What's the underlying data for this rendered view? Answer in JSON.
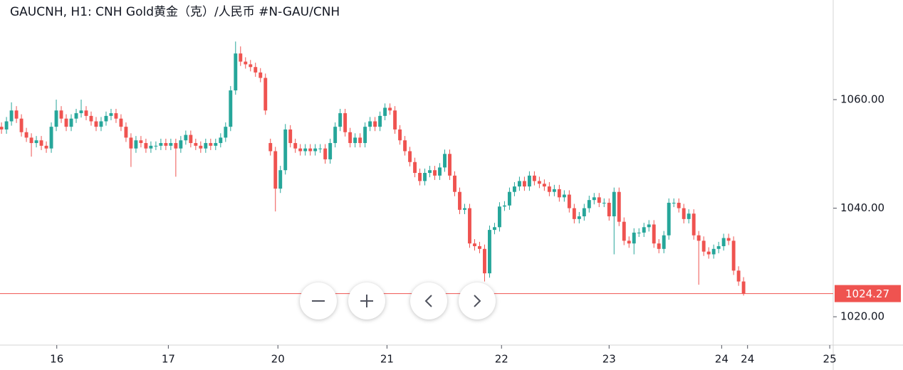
{
  "chart_data": {
    "type": "candlestick",
    "title": "GAUCNH, H1: CNH Gold黄金（克）/人民币 #N-GAU/CNH",
    "up_color": "#26a69a",
    "down_color": "#ef5350",
    "ylim": [
      1014.78,
      1078.35
    ],
    "yticks": [
      {
        "value": 1060,
        "label": "1060.00"
      },
      {
        "value": 1040,
        "label": "1040.00"
      },
      {
        "value": 1020,
        "label": "1020.00"
      }
    ],
    "xlim": [
      -0.3,
      167
    ],
    "xticks": [
      {
        "value": 11.1,
        "label": "16"
      },
      {
        "value": 33.5,
        "label": "17"
      },
      {
        "value": 55.5,
        "label": "20"
      },
      {
        "value": 77.4,
        "label": "21"
      },
      {
        "value": 100.4,
        "label": "22"
      },
      {
        "value": 122,
        "label": "23"
      },
      {
        "value": 144.6,
        "label": "24"
      },
      {
        "value": 149.8,
        "label": "24"
      },
      {
        "value": 166.3,
        "label": "25"
      }
    ],
    "last_price": 1024.27,
    "grid": false,
    "open": [
      1055,
      1054.5,
      1056,
      1058,
      1056.5,
      1054,
      1053,
      1052,
      1052.5,
      1051.5,
      1051,
      1055,
      1058,
      1056.5,
      1055,
      1056.5,
      1057.5,
      1058,
      1057,
      1056,
      1055,
      1056,
      1057,
      1057.5,
      1056.5,
      1055,
      1053,
      1051,
      1052.5,
      1052,
      1051,
      1051.5,
      1051.5,
      1052,
      1051.5,
      1052,
      1051,
      1052.5,
      1053.5,
      1052,
      1051.5,
      1051,
      1052,
      1051.5,
      1052,
      1053,
      1055,
      1061.7,
      1068.5,
      1067,
      1066.5,
      1066,
      1065,
      1064,
      1052,
      1050.5,
      1043.6,
      1047,
      1054.5,
      1052,
      1051,
      1050.5,
      1051,
      1050.5,
      1051,
      1051,
      1049,
      1052,
      1055,
      1057.5,
      1054,
      1052,
      1053,
      1052,
      1055,
      1056,
      1055,
      1057,
      1058.5,
      1058,
      1054.5,
      1052.5,
      1050.5,
      1048.5,
      1046.5,
      1045,
      1046.5,
      1047,
      1046,
      1047.5,
      1050,
      1046,
      1043,
      1039.7,
      1040,
      1033.5,
      1033,
      1032.5,
      1028,
      1036,
      1036.5,
      1040.3,
      1040.5,
      1043,
      1044,
      1045,
      1044,
      1046,
      1045,
      1044.5,
      1044,
      1043,
      1043.5,
      1042,
      1042.5,
      1040,
      1038,
      1038.5,
      1040,
      1041.5,
      1042,
      1041,
      1041,
      1038.5,
      1043,
      1037.5,
      1034,
      1033.5,
      1035.5,
      1035.5,
      1036.5,
      1037,
      1033.5,
      1032.5,
      1035,
      1041,
      1041,
      1040,
      1038,
      1039,
      1035,
      1034,
      1032,
      1031.5,
      1032.5,
      1033,
      1034.5,
      1034,
      1028.5,
      1026.5
    ],
    "high": [
      1055.8,
      1056.8,
      1059.5,
      1058.8,
      1057.3,
      1054.8,
      1053.8,
      1053.3,
      1053.3,
      1052.3,
      1055.8,
      1060,
      1058.8,
      1057.3,
      1057.3,
      1058.3,
      1060,
      1058.8,
      1057.8,
      1056.8,
      1056.8,
      1057.8,
      1058.3,
      1058.3,
      1057.3,
      1055.8,
      1053.8,
      1053.3,
      1053.3,
      1052.8,
      1052.3,
      1052.3,
      1052.8,
      1052.8,
      1052.8,
      1052.8,
      1053.3,
      1054.3,
      1054.3,
      1052.8,
      1052.3,
      1052.8,
      1052.8,
      1052.8,
      1053.8,
      1055.8,
      1062.5,
      1070.7,
      1069.8,
      1067.8,
      1067.3,
      1066.8,
      1065.8,
      1064.8,
      1052.8,
      1051.3,
      1047.8,
      1055.5,
      1055.3,
      1052.8,
      1051.8,
      1051.8,
      1051.8,
      1051.8,
      1051.8,
      1051.8,
      1052.8,
      1055.8,
      1058.3,
      1058.3,
      1054.8,
      1053.8,
      1053.8,
      1055.8,
      1056.8,
      1056.8,
      1057.8,
      1059.3,
      1059.3,
      1058.8,
      1055.3,
      1053.3,
      1051.3,
      1049.3,
      1047.3,
      1047.3,
      1047.8,
      1047.8,
      1048.3,
      1050.8,
      1050.8,
      1046.8,
      1043.8,
      1040.8,
      1040.8,
      1034.3,
      1033.8,
      1033.3,
      1036.8,
      1037.3,
      1041.1,
      1041.3,
      1043.8,
      1044.8,
      1045.8,
      1045.8,
      1046.8,
      1046.8,
      1045.8,
      1045.3,
      1044.8,
      1044.3,
      1044.3,
      1043.3,
      1043.3,
      1040.8,
      1039.3,
      1040.8,
      1042.3,
      1042.8,
      1042.8,
      1041.8,
      1041.8,
      1043.8,
      1043.8,
      1038.3,
      1034.8,
      1036.3,
      1036.3,
      1037.3,
      1037.8,
      1037.8,
      1034.3,
      1035.8,
      1041.8,
      1041.8,
      1041.8,
      1040.8,
      1039.8,
      1039.8,
      1035.8,
      1034.8,
      1032.8,
      1033.3,
      1033.8,
      1035.3,
      1035.3,
      1034.8,
      1029.3,
      1027.3
    ],
    "low": [
      1053.7,
      1053.7,
      1055.2,
      1055.7,
      1053.2,
      1052.2,
      1049.5,
      1051.2,
      1050.7,
      1050.2,
      1050.2,
      1054.2,
      1055.7,
      1054.2,
      1054.2,
      1055.7,
      1056.7,
      1056.2,
      1055.2,
      1054.2,
      1054.2,
      1055.2,
      1056.2,
      1055.7,
      1054.2,
      1052.2,
      1047.6,
      1050.2,
      1051.2,
      1050.2,
      1050.2,
      1050.7,
      1050.7,
      1050.7,
      1050.7,
      1045.8,
      1050.2,
      1051.7,
      1051.2,
      1050.7,
      1050.2,
      1050.2,
      1050.7,
      1050.7,
      1051.2,
      1052.2,
      1054.2,
      1060.9,
      1066.2,
      1065.7,
      1065.2,
      1064.2,
      1063.2,
      1057.2,
      1049.7,
      1039.4,
      1042.8,
      1046.2,
      1051.2,
      1050.2,
      1049.7,
      1049.7,
      1049.7,
      1049.7,
      1050.2,
      1048.2,
      1048.2,
      1051.2,
      1054.2,
      1053.2,
      1051.2,
      1051.2,
      1051.2,
      1051.2,
      1054.2,
      1054.2,
      1054.2,
      1056.2,
      1057.2,
      1053.7,
      1051.7,
      1049.7,
      1047.7,
      1045.7,
      1044.2,
      1044.2,
      1045.7,
      1045.2,
      1045.2,
      1046.7,
      1045.2,
      1042.2,
      1038.9,
      1038.9,
      1032.7,
      1032.2,
      1031.7,
      1026.5,
      1027.2,
      1035.2,
      1035.7,
      1039.5,
      1039.7,
      1042.2,
      1043.2,
      1043.2,
      1043.2,
      1044.2,
      1043.7,
      1043.2,
      1042.2,
      1042.2,
      1041.2,
      1041.2,
      1039.2,
      1037.2,
      1037.2,
      1037.7,
      1039.2,
      1040.7,
      1040.2,
      1040.2,
      1037.7,
      1031.5,
      1036.7,
      1033.2,
      1032.7,
      1031.5,
      1034.7,
      1034.7,
      1035.7,
      1032.7,
      1031.7,
      1031.7,
      1034.2,
      1040.2,
      1039.2,
      1037.2,
      1037.2,
      1034.2,
      1025.9,
      1031.2,
      1030.7,
      1030.7,
      1031.7,
      1032.2,
      1033.2,
      1027.7,
      1025.7,
      1023.9
    ],
    "close": [
      1054.5,
      1056,
      1058,
      1056.5,
      1054,
      1053,
      1052,
      1052.5,
      1051.5,
      1051,
      1055,
      1058,
      1056.5,
      1055,
      1056.5,
      1057.5,
      1058,
      1057,
      1056,
      1055,
      1056,
      1057,
      1057.5,
      1056.5,
      1055,
      1053,
      1051,
      1052.5,
      1052,
      1051,
      1051.5,
      1051.5,
      1052,
      1051.5,
      1052,
      1051,
      1052.5,
      1053.5,
      1052,
      1051.5,
      1051,
      1052,
      1051.5,
      1052,
      1053,
      1055,
      1061.7,
      1068.5,
      1067,
      1066.5,
      1066,
      1065,
      1064,
      1058,
      1050.5,
      1043.6,
      1047,
      1054.5,
      1052,
      1051,
      1050.5,
      1051,
      1050.5,
      1051,
      1051,
      1049,
      1052,
      1055,
      1057.5,
      1054,
      1052,
      1053,
      1052,
      1055,
      1056,
      1055,
      1057,
      1058.5,
      1058,
      1054.5,
      1052.5,
      1050.5,
      1048.5,
      1046.5,
      1045,
      1046.5,
      1047,
      1046,
      1047.5,
      1050,
      1046,
      1043,
      1039.7,
      1040,
      1033.5,
      1033,
      1032.5,
      1028,
      1036,
      1036.5,
      1040.3,
      1040.5,
      1043,
      1044,
      1045,
      1044,
      1046,
      1045,
      1044.5,
      1044,
      1043,
      1043.5,
      1042,
      1042.5,
      1040,
      1038,
      1038.5,
      1040,
      1041.5,
      1042,
      1041,
      1041,
      1038.5,
      1043,
      1037.5,
      1034,
      1033.5,
      1035.5,
      1035.5,
      1036.5,
      1037,
      1033.5,
      1032.5,
      1035,
      1041,
      1041,
      1040,
      1038,
      1039,
      1035,
      1034,
      1032,
      1031.5,
      1032.5,
      1033,
      1034.5,
      1034,
      1028.5,
      1026.5,
      1024.27
    ]
  }
}
